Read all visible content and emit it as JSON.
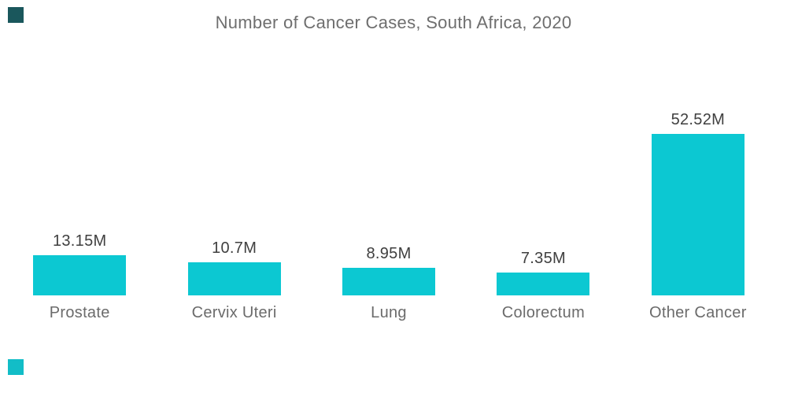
{
  "page": {
    "background_color": "#ffffff"
  },
  "branding": {
    "top_left_square_color": "#1a575c",
    "bottom_left_square_color": "#12bdc7"
  },
  "chart_data": {
    "type": "bar",
    "title": "Number of Cancer Cases, South Africa, 2020",
    "categories": [
      "Prostate",
      "Cervix Uteri",
      "Lung",
      "Colorectum",
      "Other Cancer"
    ],
    "values": [
      13.15,
      10.7,
      8.95,
      7.35,
      52.52
    ],
    "value_labels": [
      "13.15M",
      "10.7M",
      "8.95M",
      "7.35M",
      "52.52M"
    ],
    "value_suffix": "M",
    "xlabel": "",
    "ylabel": "",
    "ylim": [
      0,
      52.52
    ],
    "grid": false,
    "legend": false,
    "axes_visible": false,
    "bar_color": "#0cc8d2",
    "title_color": "#6e6e6e",
    "value_label_color": "#3f3f3f",
    "category_label_color": "#6b6b6b"
  }
}
